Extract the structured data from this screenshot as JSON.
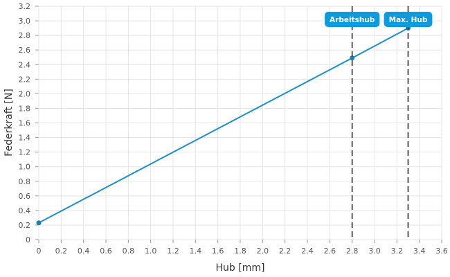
{
  "chart_data": {
    "type": "line",
    "title": "",
    "xlabel": "Hub [mm]",
    "ylabel": "Federkraft [N]",
    "xlim": [
      0,
      3.6
    ],
    "ylim": [
      0,
      3.2
    ],
    "xticks": [
      "0",
      "0.2",
      "0.4",
      "0.6",
      "0.8",
      "1.0",
      "1.2",
      "1.4",
      "1.6",
      "1.8",
      "2.0",
      "2.2",
      "2.4",
      "2.6",
      "2.8",
      "3.0",
      "3.2",
      "3.4",
      "3.6"
    ],
    "xtick_values": [
      0,
      0.2,
      0.4,
      0.6,
      0.8,
      1.0,
      1.2,
      1.4,
      1.6,
      1.8,
      2.0,
      2.2,
      2.4,
      2.6,
      2.8,
      3.0,
      3.2,
      3.4,
      3.6
    ],
    "yticks": [
      "0",
      "0.2",
      "0.4",
      "0.6",
      "0.8",
      "1.0",
      "1.2",
      "1.4",
      "1.6",
      "1.8",
      "2.0",
      "2.2",
      "2.4",
      "2.6",
      "2.8",
      "3.0",
      "3.2"
    ],
    "ytick_values": [
      0,
      0.2,
      0.4,
      0.6,
      0.8,
      1.0,
      1.2,
      1.4,
      1.6,
      1.8,
      2.0,
      2.2,
      2.4,
      2.6,
      2.8,
      3.0,
      3.2
    ],
    "grid": true,
    "series": [
      {
        "color": "#1a8fd0",
        "x": [
          0,
          2.8,
          3.3
        ],
        "y": [
          0.23,
          2.49,
          2.9
        ]
      }
    ],
    "vertical_markers": [
      {
        "x": 2.8,
        "label": "Arbeitshub"
      },
      {
        "x": 3.3,
        "label": "Max. Hub"
      }
    ],
    "colors": {
      "line": "#1a8fd0",
      "label_bg": "#0d9be0",
      "marker_line": "#444444",
      "grid": "#e4e4e4"
    }
  }
}
